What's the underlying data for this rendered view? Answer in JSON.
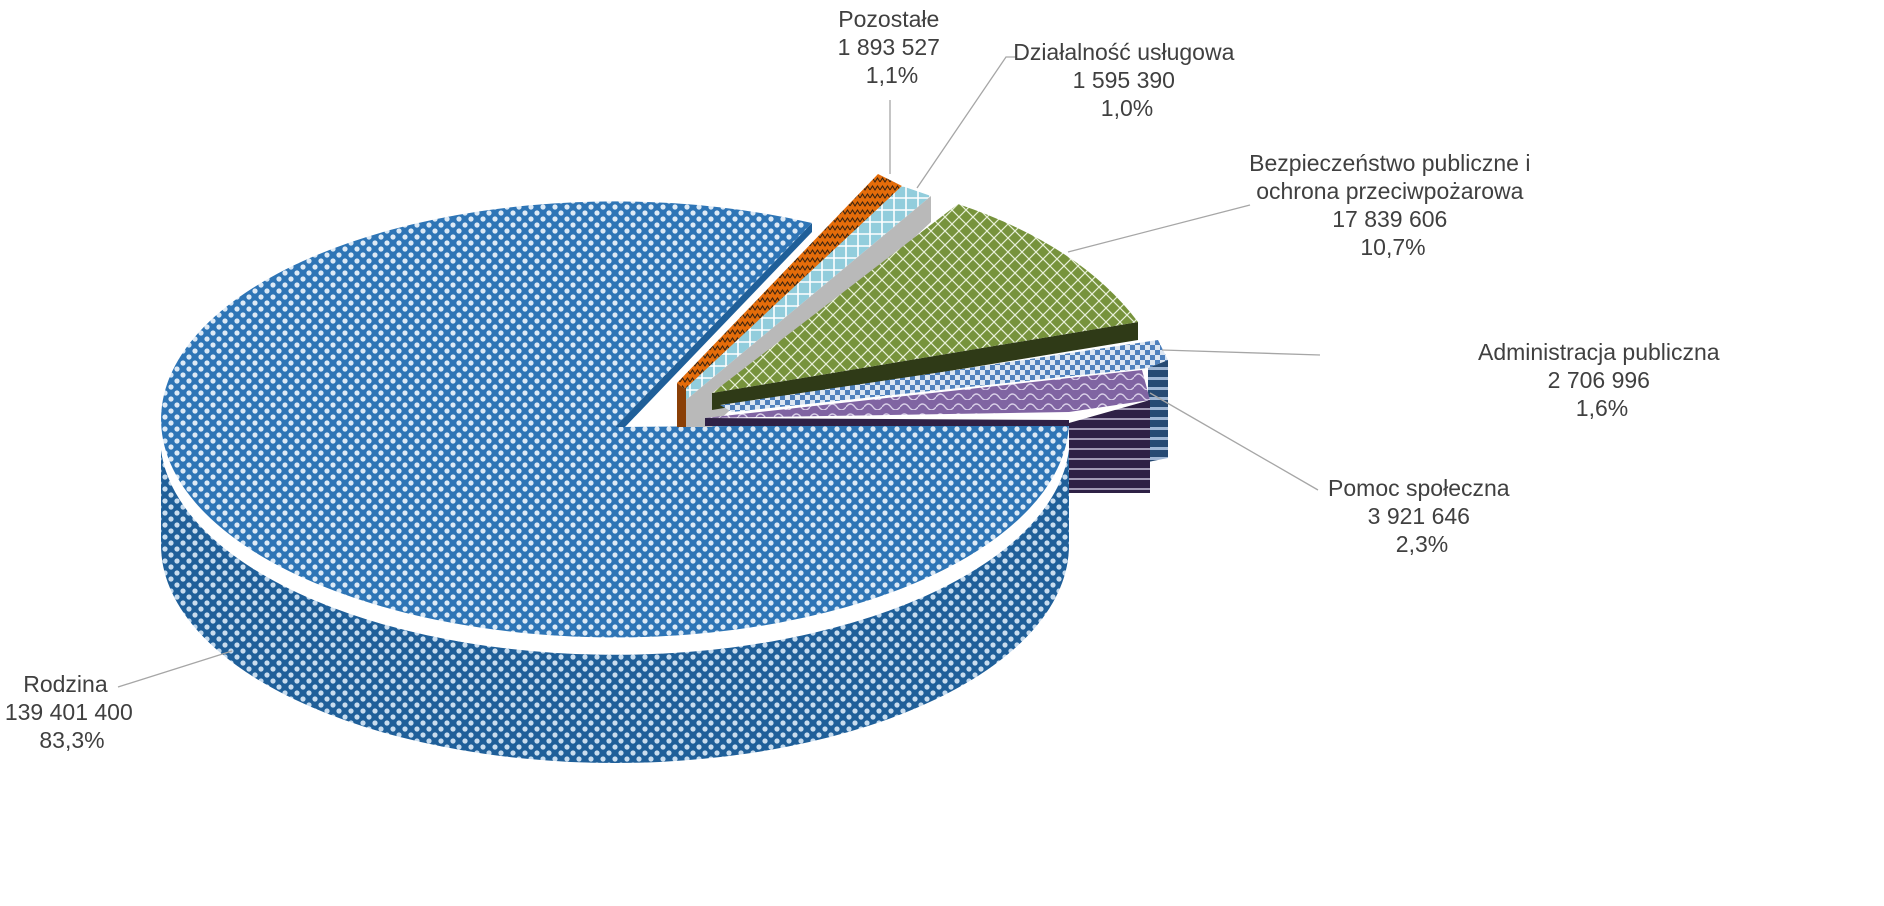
{
  "chart_data": {
    "type": "pie",
    "style": "3d-exploded",
    "title": "",
    "slices": [
      {
        "name": "Rodzina",
        "value": 139401400,
        "value_label": "139 401 400",
        "percent_label": "83,3%",
        "color": "#2e75b6"
      },
      {
        "name": "Pozostałe",
        "value": 1893527,
        "value_label": "1 893 527",
        "percent_label": "1,1%",
        "color": "#e46c0a"
      },
      {
        "name": "Działalność usługowa",
        "value": 1595390,
        "value_label": "1 595 390",
        "percent_label": "1,0%",
        "color": "#92cddc"
      },
      {
        "name": "Bezpieczeństwo publiczne i ochrona przeciwpożarowa",
        "name_lines": [
          "Bezpieczeństwo publiczne i",
          "ochrona przeciwpożarowa"
        ],
        "value": 17839606,
        "value_label": "17 839 606",
        "percent_label": "10,7%",
        "color": "#77933c"
      },
      {
        "name": "Administracja publiczna",
        "value": 2706996,
        "value_label": "2 706 996",
        "percent_label": "1,6%",
        "color": "#4f81bd"
      },
      {
        "name": "Pomoc społeczna",
        "value": 3921646,
        "value_label": "3 921 646",
        "percent_label": "2,3%",
        "color": "#8064a2"
      }
    ]
  }
}
